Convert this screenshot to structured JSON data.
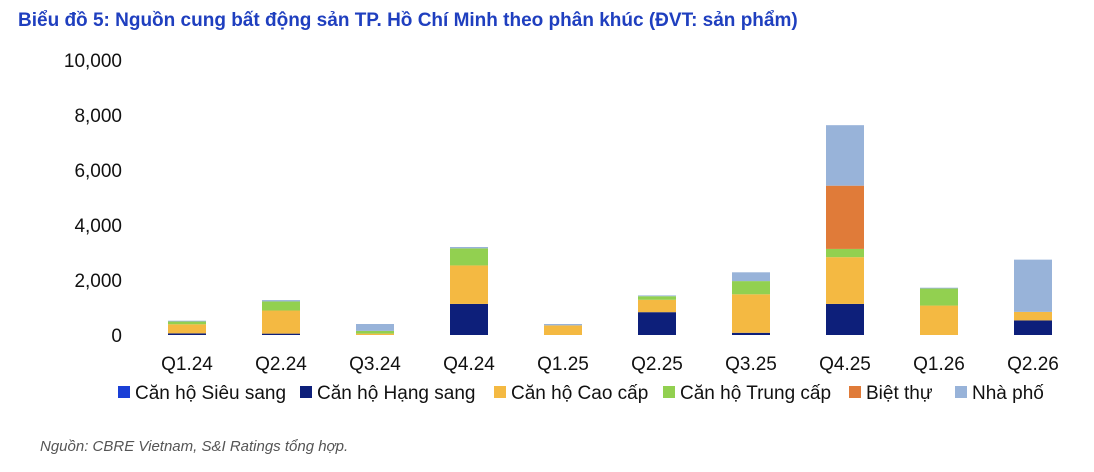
{
  "chart_data": {
    "type": "bar",
    "stacked": true,
    "title": "Biểu đồ 5: Nguồn cung bất động sản TP. Hồ Chí Minh theo phân khúc (ĐVT: sản phẩm)",
    "categories": [
      "Q1.24",
      "Q2.24",
      "Q3.24",
      "Q4.24",
      "Q1.25",
      "Q2.25",
      "Q3.25",
      "Q4.25",
      "Q1.26",
      "Q2.26"
    ],
    "ylim": [
      0,
      10000
    ],
    "yticks": [
      "0",
      "2,000",
      "4,000",
      "6,000",
      "8,000",
      "10,000"
    ],
    "grid": false,
    "legend_position": "bottom",
    "series": [
      {
        "name": "Căn hộ Siêu sang",
        "color": "#1a3fd6",
        "values": [
          0,
          0,
          0,
          0,
          0,
          0,
          0,
          0,
          0,
          0
        ]
      },
      {
        "name": "Căn hộ Hạng sang",
        "color": "#0d1f7a",
        "values": [
          60,
          50,
          0,
          1130,
          0,
          830,
          80,
          1130,
          0,
          530
        ]
      },
      {
        "name": "Căn hộ Cao cấp",
        "color": "#f4b942",
        "values": [
          330,
          840,
          50,
          1400,
          350,
          450,
          1400,
          1700,
          1070,
          310
        ]
      },
      {
        "name": "Căn hộ Trung cấp",
        "color": "#92d050",
        "values": [
          100,
          330,
          100,
          620,
          0,
          130,
          480,
          300,
          620,
          0
        ]
      },
      {
        "name": "Biệt thự",
        "color": "#e07b39",
        "values": [
          0,
          0,
          0,
          0,
          0,
          0,
          0,
          2300,
          0,
          0
        ]
      },
      {
        "name": "Nhà phố",
        "color": "#98b3d9",
        "values": [
          30,
          50,
          250,
          50,
          50,
          30,
          320,
          2200,
          30,
          1900
        ]
      }
    ]
  },
  "source_text": "Nguồn: CBRE Vietnam, S&I Ratings tổng hợp."
}
